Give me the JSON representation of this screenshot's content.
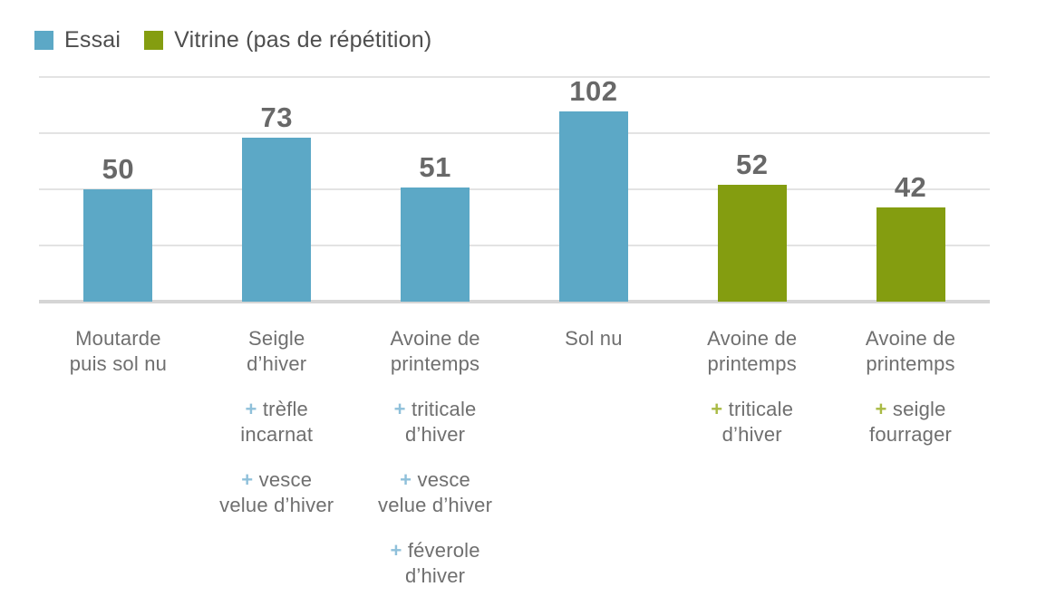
{
  "chart_data": {
    "type": "bar",
    "title": "",
    "xlabel": "",
    "ylabel": "",
    "ylim": [
      0,
      100
    ],
    "gridline_values": [
      25,
      50,
      75,
      100
    ],
    "grid": true,
    "legend_position": "top-left",
    "legend": [
      {
        "name": "Essai",
        "color": "#5ca8c6",
        "plus_color": "#8fc0da"
      },
      {
        "name": "Vitrine (pas de répétition)",
        "color": "#849d10",
        "plus_color": "#a9ba44"
      }
    ],
    "bars": [
      {
        "category": "Moutarde\npuis sol nu",
        "additions": [],
        "value": 50,
        "series": 0
      },
      {
        "category": "Seigle\nd’hiver",
        "additions": [
          "trèfle\nincarnat",
          "vesce\nvelue d’hiver"
        ],
        "value": 73,
        "series": 0
      },
      {
        "category": "Avoine de\nprintemps",
        "additions": [
          "triticale\nd’hiver",
          "vesce\nvelue d’hiver",
          "féverole\nd’hiver"
        ],
        "value": 51,
        "series": 0
      },
      {
        "category": "Sol nu",
        "additions": [],
        "value": 102,
        "series": 0
      },
      {
        "category": "Avoine de\nprintemps",
        "additions": [
          "triticale\nd’hiver"
        ],
        "value": 52,
        "series": 1
      },
      {
        "category": "Avoine de\nprintemps",
        "additions": [
          "seigle\nfourrager"
        ],
        "value": 42,
        "series": 1
      }
    ]
  },
  "colors": {
    "grid": "#e3e3e3",
    "axis_line": "#d5d5d5",
    "value_text": "#686868",
    "label_text": "#6f6f6f",
    "legend_text": "#4e4e4e",
    "background": "#ffffff"
  }
}
